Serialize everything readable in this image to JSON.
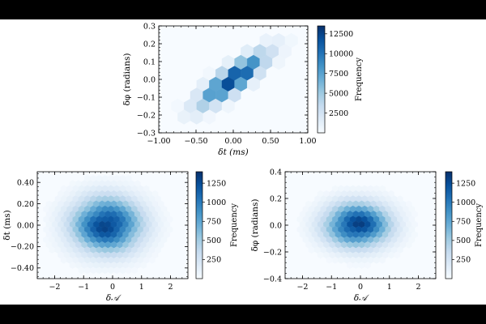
{
  "figure": {
    "background": "#ffffff",
    "letterbox_color": "#000000",
    "colormap": [
      "#f7fbff",
      "#deebf7",
      "#c6dbef",
      "#9ecae1",
      "#6baed6",
      "#4292c6",
      "#2171b5",
      "#08519c",
      "#08306b"
    ]
  },
  "chart_data": [
    {
      "type": "heatmap",
      "subtype": "hexbin",
      "title": "",
      "xlabel": "δt (ms)",
      "ylabel": "δφ (radians)",
      "xlim": [
        -1.0,
        1.0
      ],
      "ylim": [
        -0.3,
        0.3
      ],
      "xticks": [
        -1.0,
        -0.5,
        0.0,
        0.5,
        1.0
      ],
      "xtick_labels": [
        "−1.00",
        "−0.50",
        "0.00",
        "0.50",
        "1.00"
      ],
      "yticks": [
        -0.3,
        -0.2,
        -0.1,
        0.0,
        0.1,
        0.2,
        0.3
      ],
      "ytick_labels": [
        "−0.3",
        "−0.2",
        "−0.1",
        "0.0",
        "0.1",
        "0.2",
        "0.3"
      ],
      "colorbar": {
        "label": "Frequency",
        "range": [
          0,
          13500
        ],
        "ticks": [
          2500,
          5000,
          7500,
          10000,
          12500
        ],
        "tick_labels": [
          "2500",
          "5000",
          "7500",
          "10000",
          "12500"
        ]
      },
      "distribution": {
        "x_center": 0.0,
        "x_sigma": 0.3,
        "y_center": 0.0,
        "y_sigma": 0.1,
        "correlation": 0.85,
        "peak": 13500,
        "floor": 300
      }
    },
    {
      "type": "heatmap",
      "subtype": "hexbin",
      "title": "",
      "xlabel": "δ𝒜",
      "ylabel": "δt (ms)",
      "xlim": [
        -2.6,
        2.6
      ],
      "ylim": [
        -0.5,
        0.5
      ],
      "xticks": [
        -2,
        -1,
        0,
        1,
        2
      ],
      "xtick_labels": [
        "−2",
        "−1",
        "0",
        "1",
        "2"
      ],
      "yticks": [
        -0.4,
        -0.2,
        0.0,
        0.2,
        0.4
      ],
      "ytick_labels": [
        "−0.40",
        "−0.20",
        "0.00",
        "0.20",
        "0.40"
      ],
      "colorbar": {
        "label": "Frequency",
        "range": [
          0,
          1400
        ],
        "ticks": [
          250,
          500,
          750,
          1000,
          1250
        ],
        "tick_labels": [
          "250",
          "500",
          "750",
          "1000",
          "1250"
        ]
      },
      "distribution": {
        "x_center": -0.2,
        "x_sigma": 0.8,
        "y_center": 0.0,
        "y_sigma": 0.17,
        "correlation": 0.0,
        "peak": 1400,
        "floor": 30
      }
    },
    {
      "type": "heatmap",
      "subtype": "hexbin",
      "title": "",
      "xlabel": "δ𝒜",
      "ylabel": "δφ (radians)",
      "xlim": [
        -2.6,
        2.6
      ],
      "ylim": [
        -0.4,
        0.4
      ],
      "xticks": [
        -2,
        -1,
        0,
        1,
        2
      ],
      "xtick_labels": [
        "−2",
        "−1",
        "0",
        "1",
        "2"
      ],
      "yticks": [
        -0.4,
        -0.2,
        0.0,
        0.2,
        0.4
      ],
      "ytick_labels": [
        "−0.4",
        "−0.2",
        "0.0",
        "0.2",
        "0.4"
      ],
      "colorbar": {
        "label": "Frequency",
        "range": [
          0,
          1400
        ],
        "ticks": [
          250,
          500,
          750,
          1000,
          1250
        ],
        "tick_labels": [
          "250",
          "500",
          "750",
          "1000",
          "1250"
        ]
      },
      "distribution": {
        "x_center": -0.1,
        "x_sigma": 0.75,
        "y_center": 0.0,
        "y_sigma": 0.11,
        "correlation": 0.0,
        "peak": 1400,
        "floor": 30
      }
    }
  ]
}
